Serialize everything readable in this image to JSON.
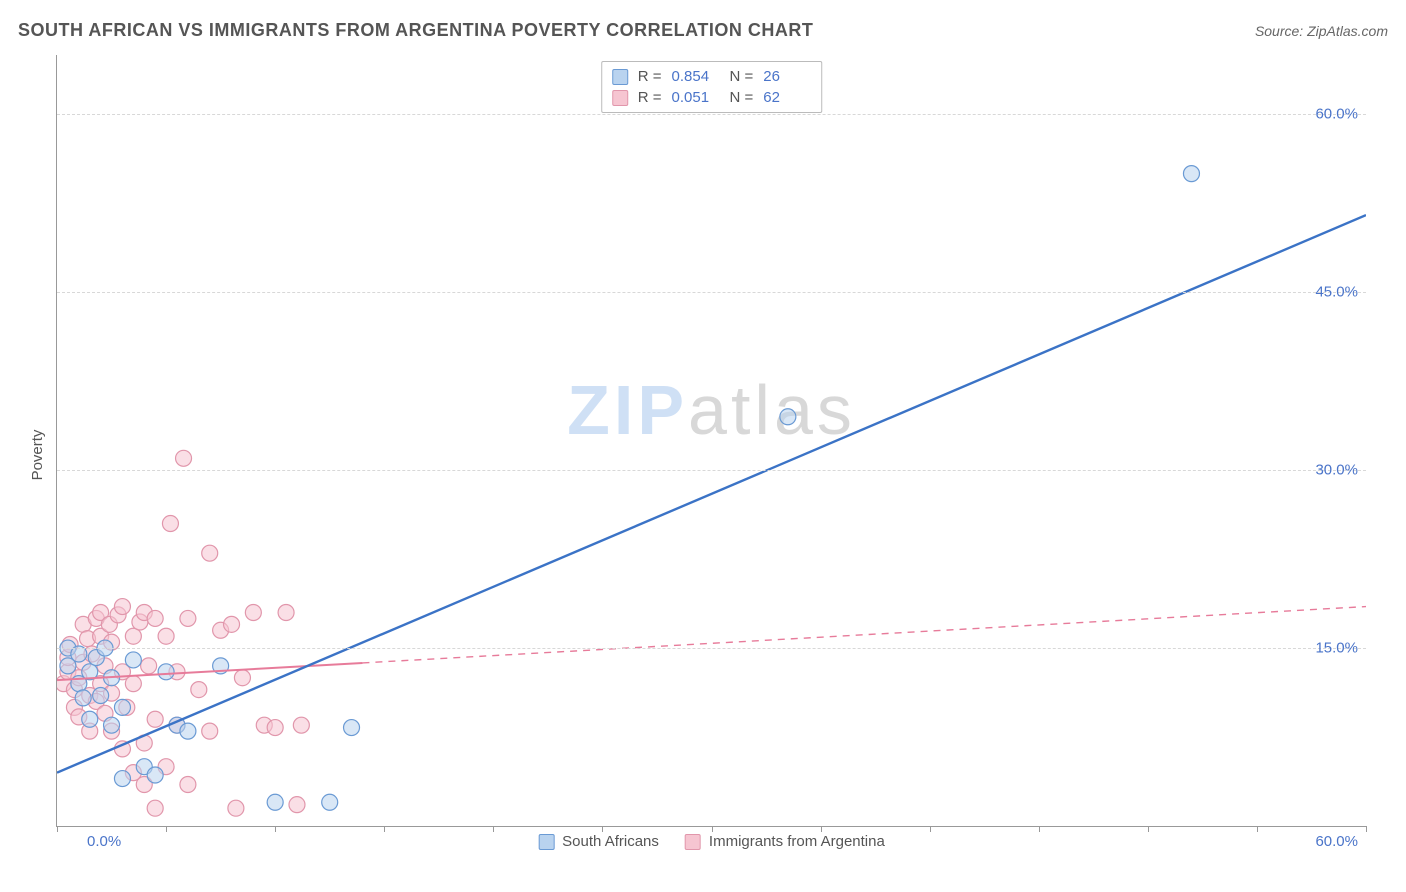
{
  "header": {
    "title": "SOUTH AFRICAN VS IMMIGRANTS FROM ARGENTINA POVERTY CORRELATION CHART",
    "source": "Source: ZipAtlas.com"
  },
  "watermark": {
    "part1": "ZIP",
    "part2": "atlas"
  },
  "chart": {
    "type": "scatter",
    "ylabel": "Poverty",
    "xlim": [
      0,
      60
    ],
    "ylim": [
      0,
      65
    ],
    "xtick_positions": [
      0,
      5,
      10,
      15,
      20,
      25,
      30,
      35,
      40,
      45,
      50,
      55,
      60
    ],
    "yticks": [
      15,
      30,
      45,
      60
    ],
    "ytick_labels": [
      "15.0%",
      "30.0%",
      "45.0%",
      "60.0%"
    ],
    "xlabel_start": "0.0%",
    "xlabel_end": "60.0%",
    "background_color": "#ffffff",
    "grid_color": "#d8d8d8",
    "axis_color": "#999999",
    "tick_label_color": "#4a74c9",
    "marker_radius": 8,
    "marker_stroke_width": 1.2,
    "series": [
      {
        "name": "South Africans",
        "fill": "#b9d3ef",
        "stroke": "#6a9ad4",
        "fill_opacity": 0.55,
        "R": "0.854",
        "N": "26",
        "trend": {
          "x1": 0,
          "y1": 4.5,
          "x2": 60,
          "y2": 51.5,
          "solid_until_x": 60,
          "color": "#3b73c6",
          "width": 2.4
        },
        "points": [
          [
            0.5,
            13.5
          ],
          [
            0.5,
            15.0
          ],
          [
            1.0,
            12.0
          ],
          [
            1.0,
            14.5
          ],
          [
            1.2,
            10.8
          ],
          [
            1.5,
            9.0
          ],
          [
            1.5,
            13.0
          ],
          [
            1.8,
            14.2
          ],
          [
            2.0,
            11.0
          ],
          [
            2.2,
            15.0
          ],
          [
            2.5,
            8.5
          ],
          [
            2.5,
            12.5
          ],
          [
            3.0,
            10.0
          ],
          [
            3.0,
            4.0
          ],
          [
            3.5,
            14.0
          ],
          [
            4.0,
            5.0
          ],
          [
            4.5,
            4.3
          ],
          [
            5.0,
            13.0
          ],
          [
            5.5,
            8.5
          ],
          [
            6.0,
            8.0
          ],
          [
            7.5,
            13.5
          ],
          [
            10.0,
            2.0
          ],
          [
            12.5,
            2.0
          ],
          [
            13.5,
            8.3
          ],
          [
            33.5,
            34.5
          ],
          [
            52.0,
            55.0
          ]
        ]
      },
      {
        "name": "Immigrants from Argentina",
        "fill": "#f6c5d1",
        "stroke": "#e196ab",
        "fill_opacity": 0.55,
        "R": "0.051",
        "N": "62",
        "trend": {
          "x1": 0,
          "y1": 12.3,
          "x2": 60,
          "y2": 18.5,
          "solid_until_x": 14,
          "color": "#e77b9a",
          "width": 2.0,
          "dash": "7 6"
        },
        "points": [
          [
            0.3,
            12.0
          ],
          [
            0.5,
            13.0
          ],
          [
            0.5,
            14.2
          ],
          [
            0.6,
            15.3
          ],
          [
            0.8,
            10.0
          ],
          [
            0.8,
            11.5
          ],
          [
            1.0,
            12.5
          ],
          [
            1.0,
            9.2
          ],
          [
            1.2,
            13.8
          ],
          [
            1.2,
            17.0
          ],
          [
            1.4,
            15.8
          ],
          [
            1.5,
            8.0
          ],
          [
            1.5,
            11.0
          ],
          [
            1.6,
            14.5
          ],
          [
            1.8,
            17.5
          ],
          [
            1.8,
            10.5
          ],
          [
            2.0,
            12.0
          ],
          [
            2.0,
            16.0
          ],
          [
            2.0,
            18.0
          ],
          [
            2.2,
            9.5
          ],
          [
            2.2,
            13.5
          ],
          [
            2.4,
            17.0
          ],
          [
            2.5,
            8.0
          ],
          [
            2.5,
            11.2
          ],
          [
            2.5,
            15.5
          ],
          [
            2.8,
            17.8
          ],
          [
            3.0,
            18.5
          ],
          [
            3.0,
            13.0
          ],
          [
            3.0,
            6.5
          ],
          [
            3.2,
            10.0
          ],
          [
            3.5,
            16.0
          ],
          [
            3.5,
            12.0
          ],
          [
            3.5,
            4.5
          ],
          [
            3.8,
            17.2
          ],
          [
            4.0,
            18.0
          ],
          [
            4.0,
            7.0
          ],
          [
            4.0,
            3.5
          ],
          [
            4.2,
            13.5
          ],
          [
            4.5,
            9.0
          ],
          [
            4.5,
            17.5
          ],
          [
            4.5,
            1.5
          ],
          [
            5.0,
            16.0
          ],
          [
            5.0,
            5.0
          ],
          [
            5.2,
            25.5
          ],
          [
            5.5,
            8.5
          ],
          [
            5.5,
            13.0
          ],
          [
            5.8,
            31.0
          ],
          [
            6.0,
            17.5
          ],
          [
            6.0,
            3.5
          ],
          [
            6.5,
            11.5
          ],
          [
            7.0,
            23.0
          ],
          [
            7.0,
            8.0
          ],
          [
            7.5,
            16.5
          ],
          [
            8.0,
            17.0
          ],
          [
            8.2,
            1.5
          ],
          [
            8.5,
            12.5
          ],
          [
            9.0,
            18.0
          ],
          [
            9.5,
            8.5
          ],
          [
            10.0,
            8.3
          ],
          [
            10.5,
            18.0
          ],
          [
            11.2,
            8.5
          ],
          [
            11.0,
            1.8
          ]
        ]
      }
    ],
    "legend_top_labels": {
      "R": "R =",
      "N": "N ="
    },
    "legend_bottom": [
      "South Africans",
      "Immigrants from Argentina"
    ]
  }
}
